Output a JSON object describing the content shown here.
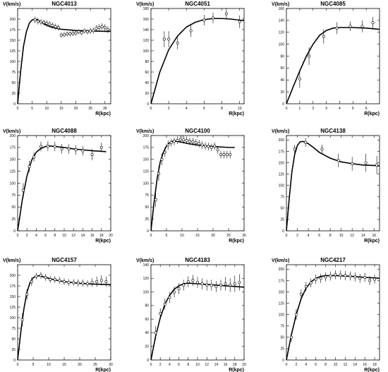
{
  "figure": {
    "panel_count": 9
  },
  "chart_data": [
    {
      "type": "scatter",
      "title": "NGC4013",
      "ylabel": "V(km/s)",
      "xlabel": "R(kpc)",
      "xlim": [
        0,
        32
      ],
      "ylim": [
        0,
        225
      ],
      "xticks": [
        0,
        5,
        10,
        15,
        20,
        25,
        30
      ],
      "yticks": [
        0,
        25,
        50,
        75,
        100,
        125,
        150,
        175,
        200
      ],
      "grid": false,
      "series": [
        {
          "kind": "points-with-errorbars",
          "x": [
            6,
            7,
            8,
            9,
            10,
            11,
            12,
            13,
            14,
            15,
            16,
            17,
            18,
            19,
            20,
            21,
            22,
            23,
            24,
            25,
            26,
            27,
            28,
            29,
            30,
            31
          ],
          "y": [
            198,
            195,
            193,
            192,
            190,
            188,
            185,
            182,
            180,
            162,
            163,
            165,
            165,
            166,
            167,
            170,
            168,
            172,
            170,
            172,
            173,
            178,
            180,
            182,
            180,
            175
          ],
          "err": [
            8,
            8,
            7,
            7,
            7,
            7,
            7,
            7,
            7,
            6,
            6,
            6,
            6,
            6,
            6,
            6,
            6,
            6,
            6,
            7,
            7,
            8,
            8,
            8,
            8,
            8
          ]
        },
        {
          "kind": "model-curve",
          "x": [
            0,
            1,
            2,
            3,
            4,
            5,
            6,
            7,
            8,
            10,
            12,
            15,
            20,
            25,
            30,
            32
          ],
          "y": [
            0,
            75,
            135,
            170,
            190,
            198,
            200,
            198,
            193,
            185,
            180,
            176,
            173,
            172,
            171,
            171
          ]
        }
      ]
    },
    {
      "type": "scatter",
      "title": "NGC4051",
      "ylabel": "V(km/s)",
      "xlabel": "R(kpc)",
      "xlim": [
        0,
        10.5
      ],
      "ylim": [
        0,
        180
      ],
      "xticks": [
        0,
        2,
        4,
        6,
        8,
        10
      ],
      "yticks": [
        0,
        20,
        40,
        60,
        80,
        100,
        120,
        140,
        160,
        180
      ],
      "grid": false,
      "series": [
        {
          "kind": "points-with-errorbars",
          "x": [
            1.5,
            2,
            3,
            4.5,
            6,
            7,
            8.5,
            10
          ],
          "y": [
            122,
            122,
            115,
            138,
            158,
            162,
            170,
            155
          ],
          "err": [
            15,
            15,
            12,
            12,
            10,
            10,
            10,
            12
          ]
        },
        {
          "kind": "model-curve",
          "x": [
            0,
            1,
            2,
            3,
            4,
            5,
            6,
            7,
            8,
            9,
            10,
            10.5
          ],
          "y": [
            0,
            60,
            102,
            128,
            145,
            154,
            159,
            161,
            161,
            160,
            158,
            157
          ]
        }
      ]
    },
    {
      "type": "scatter",
      "title": "NGC4085",
      "ylabel": "V(km/s)",
      "xlabel": "R(kpc)",
      "xlim": [
        0,
        7
      ],
      "ylim": [
        0,
        160
      ],
      "xticks": [
        0,
        1,
        2,
        3,
        4,
        5,
        6
      ],
      "yticks": [
        0,
        20,
        40,
        60,
        80,
        100,
        120,
        140,
        160
      ],
      "grid": false,
      "series": [
        {
          "kind": "points-with-errorbars",
          "x": [
            1,
            1.7,
            2.8,
            3.8,
            4.8,
            5.7,
            6.5
          ],
          "y": [
            42,
            80,
            113,
            127,
            130,
            130,
            136
          ],
          "err": [
            15,
            15,
            12,
            10,
            8,
            10,
            10
          ]
        },
        {
          "kind": "model-curve",
          "x": [
            0,
            0.5,
            1,
            1.5,
            2,
            2.5,
            3,
            3.5,
            4,
            5,
            6,
            7
          ],
          "y": [
            0,
            28,
            55,
            80,
            100,
            115,
            123,
            127,
            128,
            128,
            127,
            125
          ]
        }
      ]
    },
    {
      "type": "scatter",
      "title": "NGC4088",
      "ylabel": "V(km/s)",
      "xlabel": "R(kpc)",
      "xlim": [
        0,
        20
      ],
      "ylim": [
        0,
        200
      ],
      "xticks": [
        0,
        2,
        4,
        6,
        8,
        10,
        12,
        14,
        16,
        18,
        20
      ],
      "yticks": [
        0,
        25,
        50,
        75,
        100,
        125,
        150,
        175,
        200
      ],
      "grid": false,
      "series": [
        {
          "kind": "points-with-errorbars",
          "x": [
            1.2,
            2.5,
            3.5,
            5,
            6.5,
            8,
            9.5,
            11,
            12.5,
            14,
            16,
            18
          ],
          "y": [
            85,
            135,
            155,
            177,
            178,
            177,
            172,
            172,
            170,
            168,
            160,
            175
          ],
          "err": [
            15,
            12,
            10,
            10,
            10,
            10,
            10,
            10,
            10,
            10,
            12,
            10
          ]
        },
        {
          "kind": "model-curve",
          "x": [
            0,
            1,
            2,
            3,
            4,
            5,
            6,
            7,
            8,
            10,
            12,
            14,
            16,
            18,
            19
          ],
          "y": [
            0,
            65,
            115,
            148,
            165,
            173,
            177,
            178,
            177,
            175,
            172,
            170,
            168,
            167,
            166
          ]
        }
      ]
    },
    {
      "type": "scatter",
      "title": "NGC4100",
      "ylabel": "V(km/s)",
      "xlabel": "R(kpc)",
      "xlim": [
        0,
        30
      ],
      "ylim": [
        0,
        200
      ],
      "xticks": [
        0,
        5,
        10,
        15,
        20,
        25,
        30
      ],
      "yticks": [
        0,
        25,
        50,
        75,
        100,
        125,
        150,
        175,
        200
      ],
      "grid": false,
      "series": [
        {
          "kind": "points-with-errorbars",
          "x": [
            1.5,
            2.5,
            3.5,
            4.5,
            5.5,
            6.5,
            7.5,
            8.5,
            9.5,
            10.5,
            11.5,
            12.5,
            13.5,
            14.5,
            15.5,
            16.5,
            17.5,
            18.5,
            19.5,
            20.5,
            21.5,
            22.5,
            23.5,
            24.5,
            25.5
          ],
          "y": [
            65,
            120,
            150,
            165,
            180,
            185,
            188,
            190,
            192,
            191,
            190,
            188,
            187,
            185,
            183,
            180,
            178,
            177,
            175,
            178,
            170,
            160,
            160,
            160,
            160
          ],
          "err": [
            15,
            15,
            12,
            10,
            10,
            8,
            8,
            8,
            8,
            8,
            8,
            8,
            8,
            8,
            8,
            8,
            8,
            8,
            8,
            8,
            8,
            8,
            8,
            8,
            8
          ]
        },
        {
          "kind": "model-curve",
          "x": [
            0,
            1,
            2,
            3,
            4,
            5,
            6,
            7,
            8,
            10,
            12,
            15,
            20,
            25,
            27
          ],
          "y": [
            0,
            60,
            110,
            145,
            165,
            178,
            185,
            188,
            188,
            186,
            183,
            180,
            177,
            175,
            175
          ]
        }
      ]
    },
    {
      "type": "scatter",
      "title": "NGC4138",
      "ylabel": "V(km/s)",
      "xlabel": "R(kpc)",
      "xlim": [
        0,
        17
      ],
      "ylim": [
        0,
        210
      ],
      "xticks": [
        0,
        2,
        4,
        6,
        8,
        10,
        12,
        14,
        16
      ],
      "yticks": [
        0,
        25,
        50,
        75,
        100,
        125,
        150,
        175,
        200
      ],
      "grid": false,
      "series": [
        {
          "kind": "points-with-errorbars",
          "x": [
            1.5,
            3.5,
            6.5,
            9.5,
            12,
            14.5,
            16.5
          ],
          "y": [
            180,
            195,
            180,
            155,
            148,
            150,
            145
          ],
          "err": [
            10,
            10,
            10,
            15,
            15,
            20,
            20
          ]
        },
        {
          "kind": "model-curve",
          "x": [
            0,
            0.5,
            1,
            1.5,
            2,
            2.5,
            3,
            3.5,
            4,
            5,
            6,
            8,
            10,
            12,
            14,
            16,
            17
          ],
          "y": [
            0,
            70,
            130,
            168,
            188,
            196,
            197,
            195,
            192,
            183,
            173,
            160,
            152,
            148,
            145,
            144,
            143
          ]
        }
      ]
    },
    {
      "type": "scatter",
      "title": "NGC4157",
      "ylabel": "V(km/s)",
      "xlabel": "R(kpc)",
      "xlim": [
        0,
        30
      ],
      "ylim": [
        0,
        225
      ],
      "xticks": [
        0,
        5,
        10,
        15,
        20,
        25,
        30
      ],
      "yticks": [
        0,
        25,
        50,
        75,
        100,
        125,
        150,
        175,
        200
      ],
      "grid": false,
      "series": [
        {
          "kind": "points-with-errorbars",
          "x": [
            1.5,
            3,
            4.5,
            6,
            7.5,
            9,
            10.5,
            12,
            13.5,
            15,
            16.5,
            18,
            19.5,
            21,
            22.5,
            24,
            25.5,
            27,
            28.5
          ],
          "y": [
            95,
            155,
            185,
            198,
            200,
            195,
            190,
            190,
            188,
            185,
            183,
            183,
            182,
            182,
            180,
            183,
            185,
            188,
            185
          ],
          "err": [
            15,
            12,
            10,
            8,
            8,
            8,
            8,
            8,
            8,
            8,
            8,
            8,
            8,
            8,
            8,
            10,
            12,
            12,
            12
          ]
        },
        {
          "kind": "model-curve",
          "x": [
            0,
            1,
            2,
            3,
            4,
            5,
            6,
            7,
            8,
            10,
            12,
            15,
            20,
            25,
            30
          ],
          "y": [
            0,
            65,
            120,
            160,
            183,
            194,
            198,
            199,
            197,
            193,
            189,
            185,
            181,
            179,
            178
          ]
        }
      ]
    },
    {
      "type": "scatter",
      "title": "NGC4183",
      "ylabel": "V(km/s)",
      "xlabel": "R(kpc)",
      "xlim": [
        0,
        20
      ],
      "ylim": [
        0,
        140
      ],
      "xticks": [
        0,
        2,
        4,
        6,
        8,
        10,
        12,
        14,
        16,
        18,
        20
      ],
      "yticks": [
        0,
        20,
        40,
        60,
        80,
        100,
        120,
        140
      ],
      "grid": false,
      "series": [
        {
          "kind": "points-with-errorbars",
          "x": [
            1,
            2,
            3,
            4,
            5,
            6,
            7,
            8,
            9,
            10,
            11,
            12,
            13,
            14,
            15,
            16,
            17,
            18,
            19
          ],
          "y": [
            40,
            68,
            82,
            92,
            100,
            105,
            110,
            115,
            117,
            114,
            112,
            110,
            110,
            108,
            110,
            112,
            110,
            112,
            114
          ],
          "err": [
            10,
            8,
            8,
            8,
            8,
            8,
            8,
            8,
            8,
            8,
            8,
            8,
            8,
            8,
            8,
            10,
            10,
            12,
            12
          ]
        },
        {
          "kind": "model-curve",
          "x": [
            0,
            1,
            2,
            3,
            4,
            5,
            6,
            7,
            8,
            10,
            12,
            14,
            16,
            18,
            20
          ],
          "y": [
            0,
            35,
            62,
            82,
            95,
            104,
            109,
            112,
            113,
            112,
            111,
            110,
            109,
            108,
            107
          ]
        }
      ]
    },
    {
      "type": "scatter",
      "title": "NGC4217",
      "ylabel": "V(km/s)",
      "xlabel": "R(kpc)",
      "xlim": [
        0,
        19
      ],
      "ylim": [
        0,
        210
      ],
      "xticks": [
        0,
        2,
        4,
        6,
        8,
        10,
        12,
        14,
        16,
        18
      ],
      "yticks": [
        0,
        25,
        50,
        75,
        100,
        125,
        150,
        175,
        200
      ],
      "grid": false,
      "series": [
        {
          "kind": "points-with-errorbars",
          "x": [
            1,
            2,
            3,
            4,
            5,
            6,
            7,
            8,
            9,
            10,
            11,
            12,
            13,
            14,
            15,
            16,
            17,
            18
          ],
          "y": [
            50,
            100,
            145,
            162,
            170,
            178,
            180,
            183,
            185,
            188,
            187,
            186,
            185,
            183,
            180,
            182,
            175,
            178
          ],
          "err": [
            10,
            12,
            10,
            10,
            10,
            10,
            10,
            10,
            10,
            10,
            10,
            10,
            10,
            10,
            10,
            10,
            10,
            10
          ]
        },
        {
          "kind": "model-curve",
          "x": [
            0,
            1,
            2,
            3,
            4,
            5,
            6,
            7,
            8,
            10,
            12,
            14,
            16,
            18,
            19
          ],
          "y": [
            0,
            55,
            100,
            135,
            158,
            172,
            180,
            184,
            186,
            186,
            185,
            184,
            182,
            181,
            180
          ]
        }
      ]
    }
  ]
}
